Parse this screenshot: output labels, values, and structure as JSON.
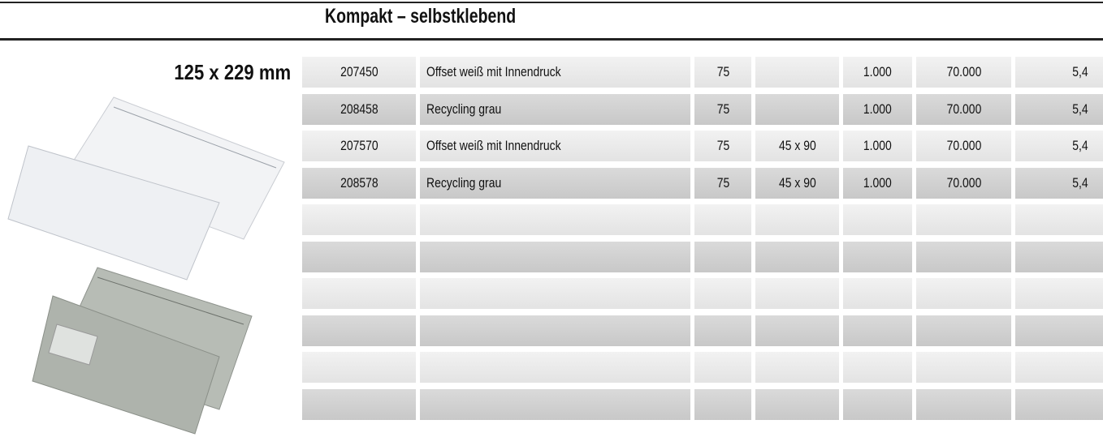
{
  "header": {
    "title": "Kompakt – selbstklebend"
  },
  "format": {
    "label": "125 x 229 mm"
  },
  "table": {
    "rows": [
      [
        "207450",
        "Offset weiß mit Innendruck",
        "75",
        null,
        "1.000",
        "70.000",
        "5,4"
      ],
      [
        "208458",
        "Recycling grau",
        "75",
        null,
        "1.000",
        "70.000",
        "5,4"
      ],
      [
        "207570",
        "Offset weiß mit Innendruck",
        "75",
        "45 x 90",
        "1.000",
        "70.000",
        "5,4"
      ],
      [
        "208578",
        "Recycling grau",
        "75",
        "45 x 90",
        "1.000",
        "70.000",
        "5,4"
      ]
    ]
  }
}
